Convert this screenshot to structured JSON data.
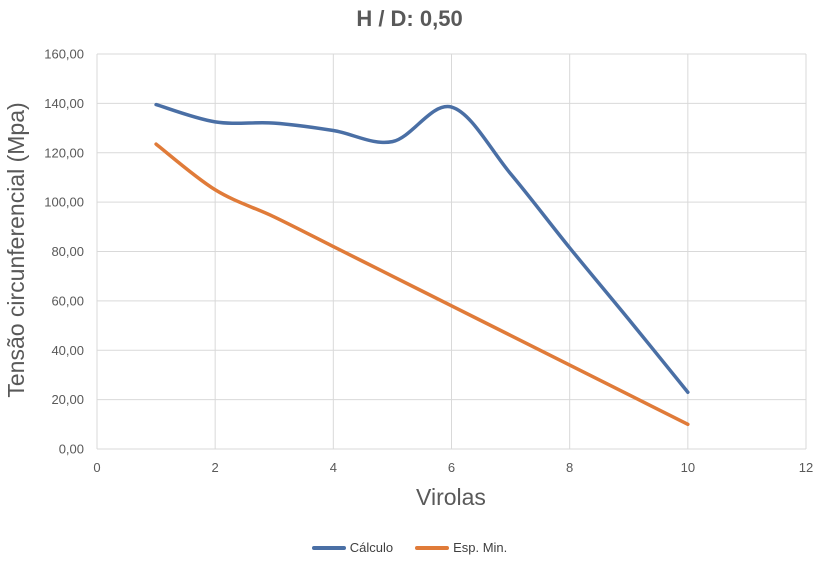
{
  "chart_data": {
    "type": "line",
    "title": "H / D: 0,50",
    "xlabel": "Virolas",
    "ylabel": "Tensão circunferencial (Mpa)",
    "xlim": [
      0,
      12
    ],
    "ylim": [
      0,
      160
    ],
    "x_ticks": [
      "0",
      "2",
      "4",
      "6",
      "8",
      "10",
      "12"
    ],
    "y_ticks": [
      "0,00",
      "20,00",
      "40,00",
      "60,00",
      "80,00",
      "100,00",
      "120,00",
      "140,00",
      "160,00"
    ],
    "grid": true,
    "legend_position": "bottom",
    "series": [
      {
        "name": "Cálculo",
        "color": "#4a6fa5",
        "x": [
          1,
          2,
          3,
          4,
          5,
          6,
          7,
          8,
          9,
          10
        ],
        "y": [
          139.5,
          132.5,
          132.0,
          129.0,
          124.5,
          138.5,
          111.5,
          81.5,
          52.5,
          23.0
        ]
      },
      {
        "name": "Esp. Min.",
        "color": "#e07b39",
        "x": [
          1,
          2,
          3,
          4,
          5,
          6,
          7,
          8,
          9,
          10
        ],
        "y": [
          123.5,
          105.0,
          94.0,
          82.0,
          70.0,
          58.0,
          46.0,
          34.0,
          22.0,
          10.0
        ]
      }
    ]
  }
}
